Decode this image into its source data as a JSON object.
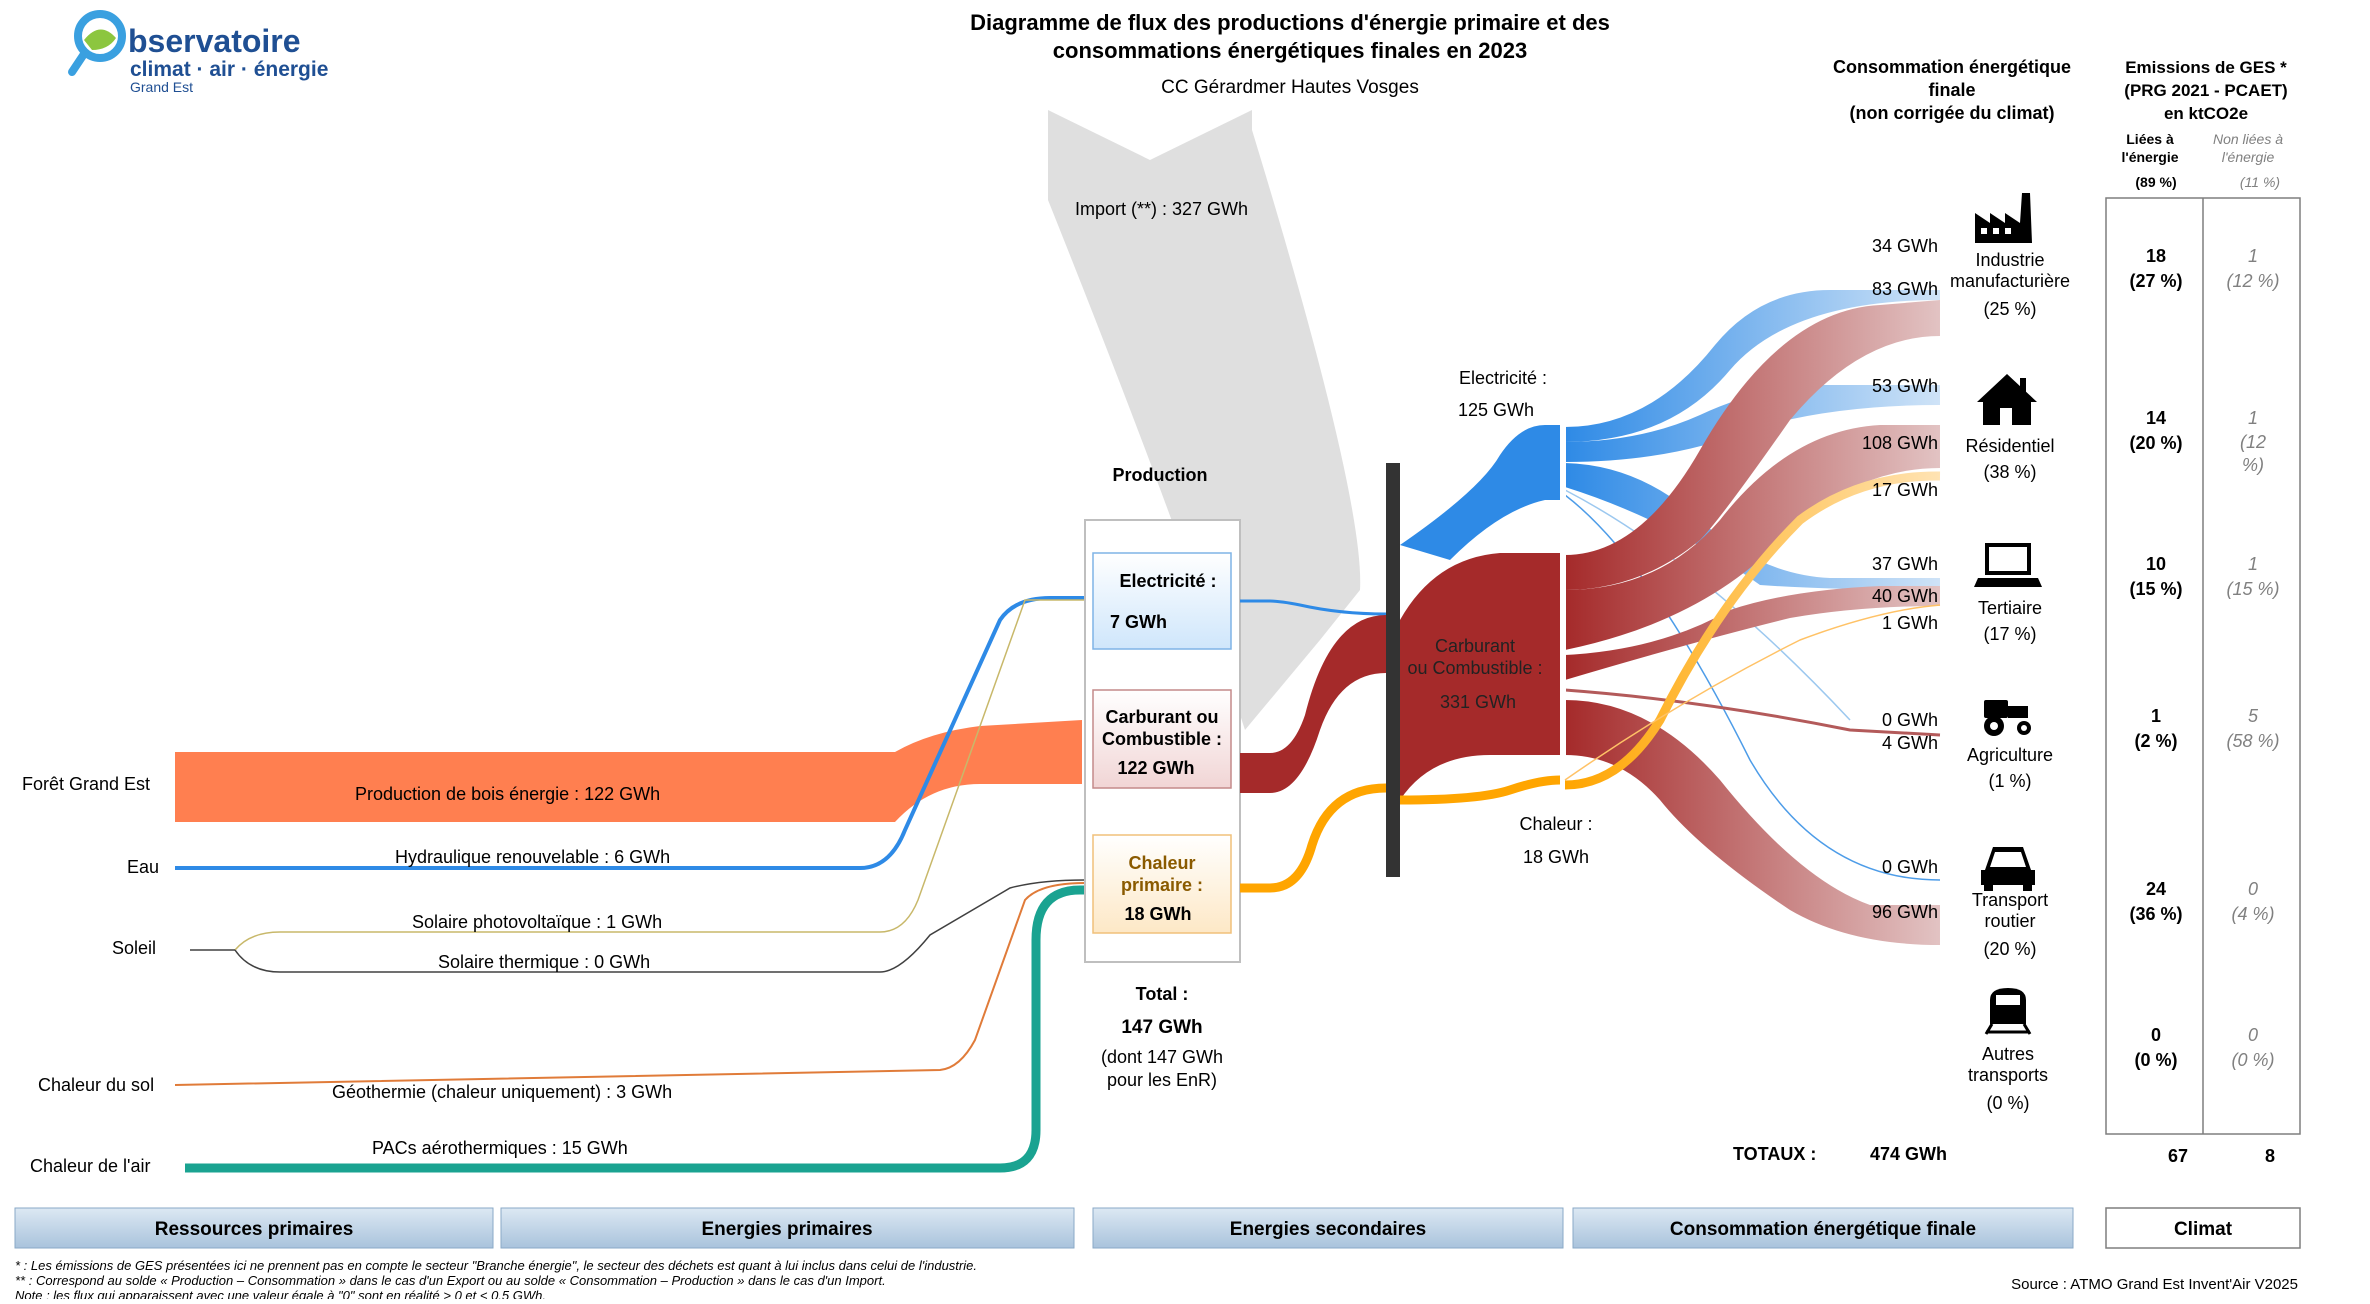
{
  "logo": {
    "line1": "bservatoire",
    "line2": "climat · air · énergie",
    "line3": "Grand Est"
  },
  "title": {
    "line1": "Diagramme de flux des productions d'énergie primaire et des",
    "line2": "consommations énergétiques finales en 2023",
    "subtitle": "CC Gérardmer Hautes Vosges"
  },
  "consumption_header": {
    "line1": "Consommation énergétique",
    "line2": "finale",
    "line3": "(non corrigée du climat)"
  },
  "ges_header": {
    "line1": "Emissions de GES *",
    "line2": "(PRG 2021 - PCAET)",
    "line3": "en ktCO2e",
    "col1_line1": "Liées à",
    "col1_line2": "l'énergie",
    "col1_pct": "(89 %)",
    "col2_line1": "Non liées à",
    "col2_line2": "l'énergie",
    "col2_pct": "(11 %)"
  },
  "import": {
    "label": "Import (**) :  327 GWh"
  },
  "production": {
    "header": "Production",
    "electricity": {
      "line1": "Electricité :",
      "line2": "7 GWh"
    },
    "fuel": {
      "line1": "Carburant ou",
      "line2": "Combustible :",
      "line3": "122 GWh"
    },
    "heat": {
      "line1": "Chaleur",
      "line2": "primaire :",
      "line3": "18 GWh"
    },
    "total": {
      "label": "Total :",
      "value": "147 GWh",
      "note1": "(dont  147 GWh",
      "note2": "pour les EnR)"
    }
  },
  "resources": [
    {
      "name": "Forêt Grand Est",
      "flow": "Production de bois énergie :  122 GWh"
    },
    {
      "name": "Eau",
      "flow": "Hydraulique renouvelable :  6 GWh"
    },
    {
      "name": "Soleil",
      "flow": "Solaire photovoltaïque :  1 GWh",
      "flow2": "Solaire thermique :  0 GWh"
    },
    {
      "name": "Chaleur du sol",
      "flow": "Géothermie (chaleur uniquement) :  3 GWh"
    },
    {
      "name": "Chaleur de l'air",
      "flow": "PACs aérothermiques :  15 GWh"
    }
  ],
  "secondary": {
    "electricity": {
      "line1": "Electricité :",
      "line2": "125 GWh"
    },
    "fuel": {
      "line1": "Carburant",
      "line2": "ou Combustible :",
      "line3": "331 GWh"
    },
    "heat": {
      "line1": "Chaleur :",
      "line2": "18 GWh"
    }
  },
  "flow_values": {
    "ind_elec": "34 GWh",
    "ind_fuel": "83 GWh",
    "res_elec": "53 GWh",
    "res_fuel": "108 GWh",
    "res_heat": "17 GWh",
    "ter_elec": "37 GWh",
    "ter_fuel": "40 GWh",
    "ter_heat": "1 GWh",
    "agr_elec": "0 GWh",
    "agr_fuel": "4 GWh",
    "tr_elec": "0 GWh",
    "tr_fuel": "96 GWh"
  },
  "sectors": [
    {
      "name1": "Industrie",
      "name2": "manufacturière",
      "pct": "(25 %)",
      "ghg": "18",
      "ghg_pct": "(27 %)",
      "non": "1",
      "non_pct": "(12 %)",
      "icon": "factory-icon"
    },
    {
      "name1": "Résidentiel",
      "name2": "",
      "pct": "(38 %)",
      "ghg": "14",
      "ghg_pct": "(20 %)",
      "non": "1",
      "non_pct1": "(12",
      "non_pct2": "%)",
      "icon": "house-icon"
    },
    {
      "name1": "Tertiaire",
      "name2": "",
      "pct": "(17 %)",
      "ghg": "10",
      "ghg_pct": "(15 %)",
      "non": "1",
      "non_pct": "(15 %)",
      "icon": "laptop-icon"
    },
    {
      "name1": "Agriculture",
      "name2": "",
      "pct": "(1 %)",
      "ghg": "1",
      "ghg_pct": "(2 %)",
      "non": "5",
      "non_pct": "(58 %)",
      "icon": "tractor-icon"
    },
    {
      "name1": "Transport",
      "name2": "routier",
      "pct": "(20 %)",
      "ghg": "24",
      "ghg_pct": "(36 %)",
      "non": "0",
      "non_pct": "(4 %)",
      "icon": "car-icon"
    },
    {
      "name1": "Autres",
      "name2": "transports",
      "pct": "(0 %)",
      "ghg": "0",
      "ghg_pct": "(0 %)",
      "non": "0",
      "non_pct": "(0 %)",
      "icon": "train-icon"
    }
  ],
  "totals": {
    "label": "TOTAUX :",
    "value": "474 GWh",
    "ghg": "67",
    "non": "8"
  },
  "categories": {
    "c1": "Ressources primaires",
    "c2": "Energies primaires",
    "c3": "Energies secondaires",
    "c4": "Consommation énergétique finale",
    "c5": "Climat"
  },
  "footnotes": {
    "f1": "* : Les émissions de GES présentées ici ne prennent pas en compte le secteur \"Branche énergie\", le secteur des déchets est quant à lui inclus dans celui de l'industrie.",
    "f2": "** : Correspond au solde « Production – Consommation » dans le cas d'un Export ou au solde « Consommation – Production » dans le cas d'un Import.",
    "f3": "Note : les flux qui apparaissent avec une valeur égale à \"0\" sont en réalité > 0 et < 0.5 GWh.",
    "source": "Source : ATMO Grand Est Invent'Air V2025"
  },
  "colors": {
    "electricity": "#2e8ae6",
    "fuel": "#a52a2a",
    "heat": "#ffa500",
    "wood": "#ff7f50",
    "ambient_heat": "#1aa391",
    "import": "#dcdcdc"
  }
}
